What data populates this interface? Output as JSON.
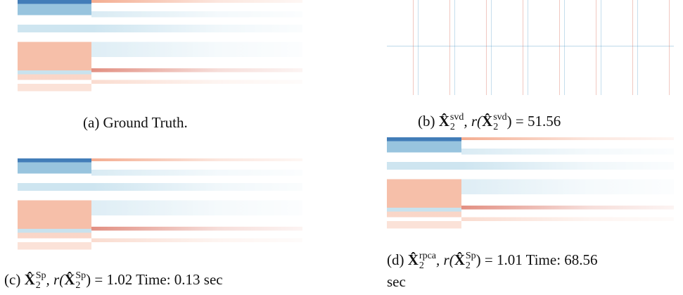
{
  "panels": [
    {
      "caption": [
        "(a) Ground Truth."
      ]
    },
    {
      "caption": [
        "(b) ",
        "X̂",
        "2",
        "svd",
        ", r(",
        "X̂",
        "2",
        "svd",
        ") = 51.56"
      ]
    },
    {
      "caption": [
        "(c) ",
        "X̂",
        "2",
        "Sp",
        ", r(",
        "X̂",
        "2",
        "Sp",
        ") = 1.02 Time: 0.13 sec"
      ]
    },
    {
      "caption": [
        "(d) ",
        "X̂",
        "2",
        "rpca",
        ", r(",
        "X̂",
        "2",
        "Sp",
        ") = 1.01 Time: 68.56",
        "sec"
      ]
    }
  ]
}
